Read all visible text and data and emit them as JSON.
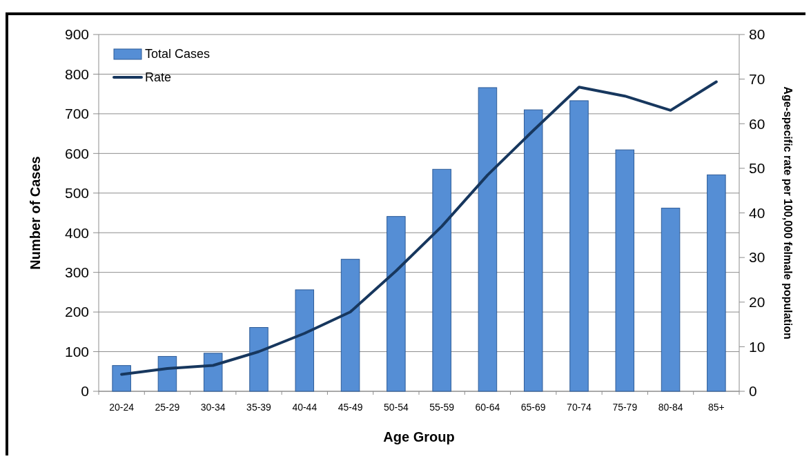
{
  "chart_data": {
    "type": "bar",
    "xlabel": "Age Group",
    "ylabel": "Number of Cases",
    "y2label": "Age-specific rate per 100,000 felmale population",
    "categories": [
      "20-24",
      "25-29",
      "30-34",
      "35-39",
      "40-44",
      "45-49",
      "50-54",
      "55-59",
      "60-64",
      "65-69",
      "70-74",
      "75-79",
      "80-84",
      "85+"
    ],
    "series": [
      {
        "name": "Total Cases",
        "color": "#558ed5",
        "values": [
          65,
          88,
          96,
          161,
          256,
          333,
          441,
          560,
          766,
          710,
          733,
          609,
          462,
          546
        ]
      },
      {
        "name": "Rate",
        "type": "line",
        "axis": "y2",
        "color": "#17375e",
        "values": [
          3.8,
          5.1,
          5.8,
          8.9,
          13,
          17.8,
          27,
          37,
          48.5,
          58.5,
          68.2,
          66.2,
          63,
          69.4
        ]
      }
    ],
    "ylim": [
      0,
      900
    ],
    "yticks": [
      0,
      100,
      200,
      300,
      400,
      500,
      600,
      700,
      800,
      900
    ],
    "y2lim": [
      0,
      80
    ],
    "y2ticks": [
      0,
      10,
      20,
      30,
      40,
      50,
      60,
      70,
      80
    ],
    "grid": "y",
    "legend": "top left"
  }
}
